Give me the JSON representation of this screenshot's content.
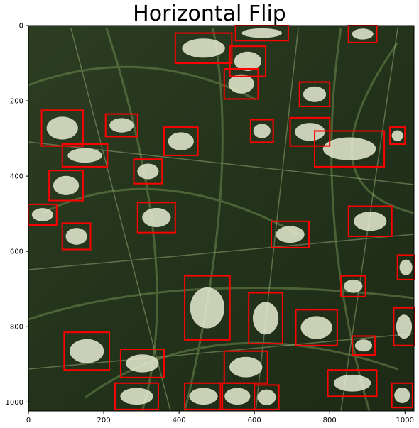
{
  "title": "Horizontal Flip",
  "axes": {
    "x_ticks": [
      "0",
      "200",
      "400",
      "600",
      "800",
      "1000"
    ],
    "y_ticks": [
      "0",
      "200",
      "400",
      "600",
      "800",
      "1000"
    ]
  },
  "colors": {
    "box": "#ff0000",
    "frame": "#000000",
    "background": "#ffffff"
  },
  "chart_data": {
    "type": "image-with-boxes",
    "xlim": [
      0,
      1024
    ],
    "ylim": [
      1024,
      0
    ],
    "x_ticks_values": [
      0,
      200,
      400,
      600,
      800,
      1000
    ],
    "y_ticks_values": [
      0,
      200,
      400,
      600,
      800,
      1000
    ],
    "boxes": [
      [
        550,
        0,
        140,
        40
      ],
      [
        390,
        20,
        150,
        80
      ],
      [
        535,
        55,
        95,
        80
      ],
      [
        520,
        115,
        90,
        80
      ],
      [
        850,
        0,
        75,
        45
      ],
      [
        720,
        150,
        80,
        65
      ],
      [
        35,
        225,
        110,
        95
      ],
      [
        205,
        235,
        85,
        60
      ],
      [
        90,
        315,
        120,
        60
      ],
      [
        360,
        270,
        90,
        75
      ],
      [
        590,
        250,
        60,
        60
      ],
      [
        695,
        245,
        105,
        75
      ],
      [
        760,
        280,
        185,
        95
      ],
      [
        960,
        270,
        40,
        45
      ],
      [
        280,
        355,
        75,
        65
      ],
      [
        55,
        385,
        90,
        80
      ],
      [
        0,
        475,
        75,
        55
      ],
      [
        90,
        525,
        75,
        70
      ],
      [
        290,
        470,
        100,
        80
      ],
      [
        645,
        520,
        100,
        70
      ],
      [
        850,
        480,
        115,
        80
      ],
      [
        980,
        610,
        45,
        65
      ],
      [
        415,
        665,
        120,
        170
      ],
      [
        585,
        710,
        90,
        135
      ],
      [
        710,
        755,
        110,
        95
      ],
      [
        830,
        665,
        65,
        55
      ],
      [
        860,
        825,
        60,
        50
      ],
      [
        970,
        750,
        55,
        100
      ],
      [
        95,
        815,
        120,
        100
      ],
      [
        245,
        860,
        115,
        75
      ],
      [
        520,
        865,
        115,
        85
      ],
      [
        795,
        915,
        130,
        70
      ],
      [
        230,
        950,
        115,
        70
      ],
      [
        415,
        950,
        100,
        70
      ],
      [
        510,
        950,
        90,
        70
      ],
      [
        600,
        955,
        65,
        65
      ],
      [
        965,
        950,
        55,
        65
      ]
    ]
  }
}
